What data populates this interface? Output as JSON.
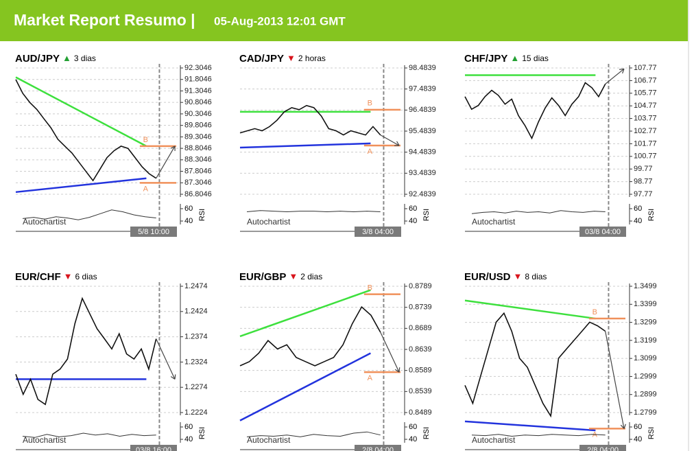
{
  "header": {
    "title": "Market Report Resumo |",
    "date": "05-Aug-2013 12:01 GMT"
  },
  "panels": [
    {
      "pair": "AUD/JPY",
      "trend": "▲",
      "trend_color": "#22a032",
      "period": "3 dias",
      "ylim": [
        86.8046,
        92.3046
      ],
      "yticks": [
        92.3046,
        91.8046,
        91.3046,
        90.8046,
        90.3046,
        89.8046,
        89.3046,
        88.8046,
        88.3046,
        87.8046,
        87.3046,
        86.8046
      ],
      "values": [
        91.8,
        91.2,
        90.8,
        90.5,
        90.1,
        89.7,
        89.2,
        88.9,
        88.6,
        88.2,
        87.8,
        87.4,
        87.9,
        88.4,
        88.7,
        88.9,
        88.8,
        88.4,
        88.0,
        87.7,
        87.5
      ],
      "resistance": [
        91.9,
        88.9
      ],
      "support": [
        86.9,
        87.5
      ],
      "levels": [
        88.9,
        87.3
      ],
      "target": 88.9,
      "pattern_labels": [
        "B",
        "A"
      ],
      "rsi": [
        44,
        46,
        43,
        47,
        45,
        42,
        46,
        52,
        58,
        55,
        50,
        47,
        45
      ],
      "rsi_ylim": [
        30,
        70
      ],
      "rsi_yticks": [
        60,
        40
      ],
      "rsi_label": "RSI",
      "watermark": "Autochartist",
      "time": "5/8 10:00"
    },
    {
      "pair": "CAD/JPY",
      "trend": "▼",
      "trend_color": "#d8141c",
      "period": "2 horas",
      "ylim": [
        92.4839,
        98.4839
      ],
      "yticks": [
        98.4839,
        97.4839,
        96.4839,
        95.4839,
        94.4839,
        93.4839,
        92.4839
      ],
      "values": [
        95.4,
        95.5,
        95.6,
        95.5,
        95.7,
        96.0,
        96.4,
        96.6,
        96.5,
        96.7,
        96.6,
        96.2,
        95.6,
        95.5,
        95.3,
        95.5,
        95.4,
        95.3,
        95.7,
        95.3
      ],
      "resistance": [
        96.4,
        96.4
      ],
      "support": [
        94.7,
        94.9
      ],
      "levels": [
        96.5,
        94.8
      ],
      "target": 94.8,
      "pattern_labels": [
        "B",
        "A"
      ],
      "rsi": [
        55,
        57,
        56,
        55,
        56,
        56,
        55,
        56,
        55,
        56,
        55
      ],
      "rsi_ylim": [
        30,
        70
      ],
      "rsi_yticks": [
        60,
        40
      ],
      "rsi_label": "RSI",
      "watermark": "Autochartist",
      "time": "3/8 04:00"
    },
    {
      "pair": "CHF/JPY",
      "trend": "▲",
      "trend_color": "#22a032",
      "period": "15 dias",
      "ylim": [
        97.77,
        107.77
      ],
      "yticks": [
        107.77,
        106.77,
        105.77,
        104.77,
        103.77,
        102.77,
        101.77,
        100.77,
        99.77,
        98.77,
        97.77
      ],
      "values": [
        105.5,
        104.5,
        104.8,
        105.5,
        106.0,
        105.6,
        104.9,
        105.3,
        104.0,
        103.2,
        102.2,
        103.5,
        104.6,
        105.4,
        104.8,
        104.0,
        104.9,
        105.5,
        106.6,
        106.2,
        105.5,
        106.5
      ],
      "resistance": [
        107.2,
        107.2
      ],
      "support": [],
      "levels": [],
      "target": 107.7,
      "pattern_labels": [],
      "rsi": [
        52,
        54,
        55,
        53,
        56,
        54,
        55,
        53,
        57,
        55,
        54,
        56,
        55
      ],
      "rsi_ylim": [
        30,
        70
      ],
      "rsi_yticks": [
        60,
        40
      ],
      "rsi_label": "RSI",
      "watermark": "Autochartist",
      "time": "03/8 04:00"
    },
    {
      "pair": "EUR/CHF",
      "trend": "▼",
      "trend_color": "#d8141c",
      "period": "6 dias",
      "ylim": [
        1.2224,
        1.2474
      ],
      "yticks": [
        1.2474,
        1.2424,
        1.2374,
        1.2324,
        1.2274,
        1.2224
      ],
      "values": [
        1.23,
        1.226,
        1.229,
        1.225,
        1.224,
        1.23,
        1.231,
        1.233,
        1.24,
        1.245,
        1.242,
        1.239,
        1.237,
        1.235,
        1.238,
        1.234,
        1.233,
        1.235,
        1.231,
        1.237
      ],
      "resistance": [],
      "support": [
        1.229,
        1.229
      ],
      "levels": [],
      "target": 1.229,
      "pattern_labels": [],
      "rsi": [
        45,
        43,
        48,
        44,
        46,
        50,
        47,
        49,
        45,
        48,
        46,
        47
      ],
      "rsi_ylim": [
        30,
        70
      ],
      "rsi_yticks": [
        60,
        40
      ],
      "rsi_label": "RSI",
      "watermark": "Autochartist",
      "time": "03/8 16:00"
    },
    {
      "pair": "EUR/GBP",
      "trend": "▼",
      "trend_color": "#d8141c",
      "period": "2 dias",
      "ylim": [
        0.8489,
        0.8789
      ],
      "yticks": [
        0.8789,
        0.8739,
        0.8689,
        0.8639,
        0.8589,
        0.8539,
        0.8489
      ],
      "values": [
        0.86,
        0.861,
        0.863,
        0.866,
        0.864,
        0.865,
        0.862,
        0.861,
        0.86,
        0.861,
        0.862,
        0.865,
        0.87,
        0.874,
        0.872,
        0.868
      ],
      "resistance": [
        0.867,
        0.878
      ],
      "support": [
        0.847,
        0.863
      ],
      "levels": [
        0.877,
        0.8585
      ],
      "target": 0.8585,
      "pattern_labels": [
        "B",
        "A"
      ],
      "rsi": [
        44,
        46,
        45,
        47,
        44,
        48,
        46,
        45,
        50,
        52,
        47
      ],
      "rsi_ylim": [
        30,
        70
      ],
      "rsi_yticks": [
        60,
        40
      ],
      "rsi_label": "RSI",
      "watermark": "Autochartist",
      "time": "2/8 04:00"
    },
    {
      "pair": "EUR/USD",
      "trend": "▼",
      "trend_color": "#d8141c",
      "period": "8 dias",
      "ylim": [
        1.2799,
        1.3499
      ],
      "yticks": [
        1.3499,
        1.3399,
        1.3299,
        1.3199,
        1.3099,
        1.2999,
        1.2899,
        1.2799
      ],
      "values": [
        1.295,
        1.285,
        1.3,
        1.315,
        1.33,
        1.335,
        1.325,
        1.31,
        1.305,
        1.295,
        1.285,
        1.278,
        1.31,
        1.315,
        1.32,
        1.325,
        1.33,
        1.328,
        1.325
      ],
      "resistance": [
        1.342,
        1.332
      ],
      "support": [
        1.275,
        1.27
      ],
      "levels": [
        1.332,
        1.271
      ],
      "target": 1.271,
      "pattern_labels": [
        "B",
        "A"
      ],
      "rsi": [
        47,
        46,
        48,
        45,
        47,
        46,
        48,
        47,
        46,
        48,
        47
      ],
      "rsi_ylim": [
        30,
        70
      ],
      "rsi_yticks": [
        60,
        40
      ],
      "rsi_label": "RSI",
      "watermark": "Autochartist",
      "time": "2/8 04:00"
    }
  ]
}
